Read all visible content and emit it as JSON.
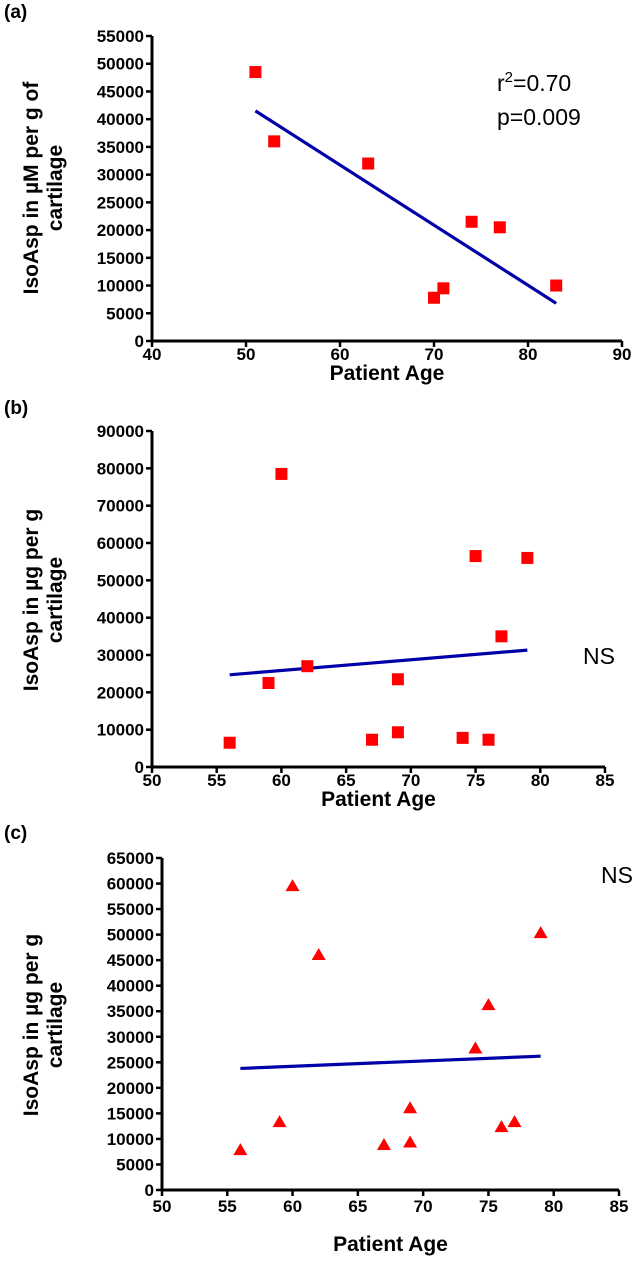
{
  "chart_data": [
    {
      "panel_label": "(a)",
      "type": "scatter",
      "marker": "square",
      "xlabel": "Patient Age",
      "ylabel_lines": [
        "IsoAsp in µM per g of",
        "cartilage"
      ],
      "xlim": [
        40,
        90
      ],
      "ylim": [
        0,
        55000
      ],
      "x_ticks": [
        40,
        50,
        60,
        70,
        80,
        90
      ],
      "x_tick_labels": [
        "40",
        "50",
        "60",
        "70",
        "80",
        "90"
      ],
      "y_ticks": [
        0,
        5000,
        10000,
        15000,
        20000,
        25000,
        30000,
        35000,
        40000,
        45000,
        50000,
        55000
      ],
      "y_tick_labels": [
        "0",
        "5000",
        "10000",
        "15000",
        "20000",
        "25000",
        "30000",
        "35000",
        "40000",
        "45000",
        "50000",
        "55000"
      ],
      "points": [
        [
          51,
          48500
        ],
        [
          53,
          36000
        ],
        [
          63,
          32000
        ],
        [
          70,
          7800
        ],
        [
          71,
          9500
        ],
        [
          74,
          21500
        ],
        [
          77,
          20500
        ],
        [
          83,
          10000
        ]
      ],
      "fit_line": [
        [
          51,
          41500
        ],
        [
          83,
          6800
        ]
      ],
      "annotations": [
        "r2=0.70",
        "p=0.009"
      ],
      "grid": false
    },
    {
      "panel_label": "(b)",
      "type": "scatter",
      "marker": "square",
      "xlabel": "Patient Age",
      "ylabel_lines": [
        "IsoAsp in µg per g",
        "cartilage"
      ],
      "xlim": [
        50,
        85
      ],
      "ylim": [
        0,
        90000
      ],
      "x_ticks": [
        50,
        55,
        60,
        65,
        70,
        75,
        80,
        85
      ],
      "x_tick_labels": [
        "50",
        "55",
        "60",
        "65",
        "70",
        "75",
        "80",
        "85"
      ],
      "y_ticks": [
        0,
        10000,
        20000,
        30000,
        40000,
        50000,
        60000,
        70000,
        80000,
        90000
      ],
      "y_tick_labels": [
        "0",
        "10000",
        "20000",
        "30000",
        "40000",
        "50000",
        "60000",
        "70000",
        "80000",
        "90000"
      ],
      "points": [
        [
          56,
          6500
        ],
        [
          59,
          22500
        ],
        [
          60,
          78500
        ],
        [
          62,
          27000
        ],
        [
          67,
          7300
        ],
        [
          69,
          9300
        ],
        [
          69,
          23500
        ],
        [
          74,
          7800
        ],
        [
          75,
          56500
        ],
        [
          76,
          7300
        ],
        [
          77,
          35000
        ],
        [
          79,
          56000
        ]
      ],
      "fit_line": [
        [
          56,
          24700
        ],
        [
          79,
          31300
        ]
      ],
      "annotations": [
        "NS"
      ],
      "grid": false
    },
    {
      "panel_label": "(c)",
      "type": "scatter",
      "marker": "triangle",
      "xlabel": "Patient Age",
      "ylabel_lines": [
        "IsoAsp in µg per g",
        "cartilage"
      ],
      "xlim": [
        50,
        85
      ],
      "ylim": [
        0,
        65000
      ],
      "x_ticks": [
        50,
        55,
        60,
        65,
        70,
        75,
        80,
        85
      ],
      "x_tick_labels": [
        "50",
        "55",
        "60",
        "65",
        "70",
        "75",
        "80",
        "85"
      ],
      "y_ticks": [
        0,
        5000,
        10000,
        15000,
        20000,
        25000,
        30000,
        35000,
        40000,
        45000,
        50000,
        55000,
        60000,
        65000
      ],
      "y_tick_labels": [
        "0",
        "5000",
        "10000",
        "15000",
        "20000",
        "25000",
        "30000",
        "35000",
        "40000",
        "45000",
        "50000",
        "55000",
        "60000",
        "65000"
      ],
      "points": [
        [
          56,
          7800
        ],
        [
          59,
          13300
        ],
        [
          60,
          59500
        ],
        [
          62,
          46000
        ],
        [
          67,
          8800
        ],
        [
          69,
          9300
        ],
        [
          69,
          16000
        ],
        [
          74,
          27700
        ],
        [
          75,
          36200
        ],
        [
          76,
          12300
        ],
        [
          77,
          13300
        ],
        [
          79,
          50300
        ]
      ],
      "fit_line": [
        [
          56,
          23800
        ],
        [
          79,
          26200
        ]
      ],
      "annotations": [
        "NS"
      ],
      "grid": false
    }
  ],
  "colors": {
    "marker": "#ff0000",
    "fit_line": "#0000a8",
    "axis": "#000000"
  }
}
